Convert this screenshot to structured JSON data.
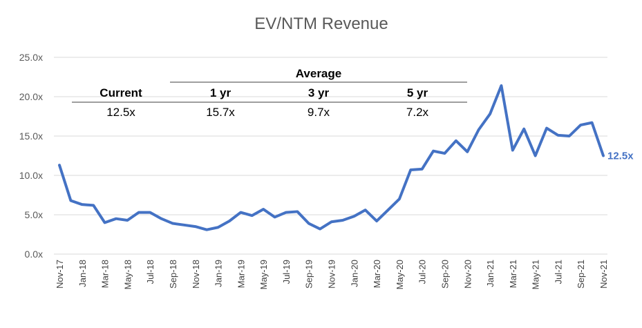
{
  "colors": {
    "series": "#4472c4",
    "grid": "#d9d9d9",
    "axis_text": "#595959"
  },
  "summary_table": {
    "group_header": "Average",
    "columns": [
      {
        "header": "Current",
        "value": "12.5x"
      },
      {
        "header": "1 yr",
        "value": "15.7x"
      },
      {
        "header": "3 yr",
        "value": "9.7x"
      },
      {
        "header": "5 yr",
        "value": "7.2x"
      }
    ]
  },
  "chart_data": {
    "type": "line",
    "title": "EV/NTM Revenue",
    "xlabel": "",
    "ylabel": "",
    "ylim": [
      0,
      25
    ],
    "y_ticks": [
      "0.0x",
      "5.0x",
      "10.0x",
      "15.0x",
      "20.0x",
      "25.0x"
    ],
    "x_tick_labels": [
      "Nov-17",
      "Jan-18",
      "Mar-18",
      "May-18",
      "Jul-18",
      "Sep-18",
      "Nov-18",
      "Jan-19",
      "Mar-19",
      "May-19",
      "Jul-19",
      "Sep-19",
      "Nov-19",
      "Jan-20",
      "Mar-20",
      "May-20",
      "Jul-20",
      "Sep-20",
      "Nov-20",
      "Jan-21",
      "Mar-21",
      "May-21",
      "Jul-21",
      "Sep-21",
      "Nov-21"
    ],
    "grid": true,
    "legend": "none",
    "end_label": "12.5x",
    "series": [
      {
        "values": [
          11.3,
          6.8,
          6.3,
          6.2,
          4.0,
          4.5,
          4.3,
          5.3,
          5.3,
          4.5,
          3.9,
          3.7,
          3.5,
          3.1,
          3.4,
          4.2,
          5.3,
          4.9,
          5.7,
          4.7,
          5.3,
          5.4,
          3.9,
          3.2,
          4.1,
          4.3,
          4.8,
          5.6,
          4.2,
          5.6,
          7.0,
          10.7,
          10.8,
          13.1,
          12.8,
          14.4,
          13.0,
          15.8,
          17.8,
          21.4,
          13.2,
          15.9,
          12.5,
          16.0,
          15.1,
          15.0,
          16.4,
          16.7,
          12.5
        ]
      }
    ]
  }
}
